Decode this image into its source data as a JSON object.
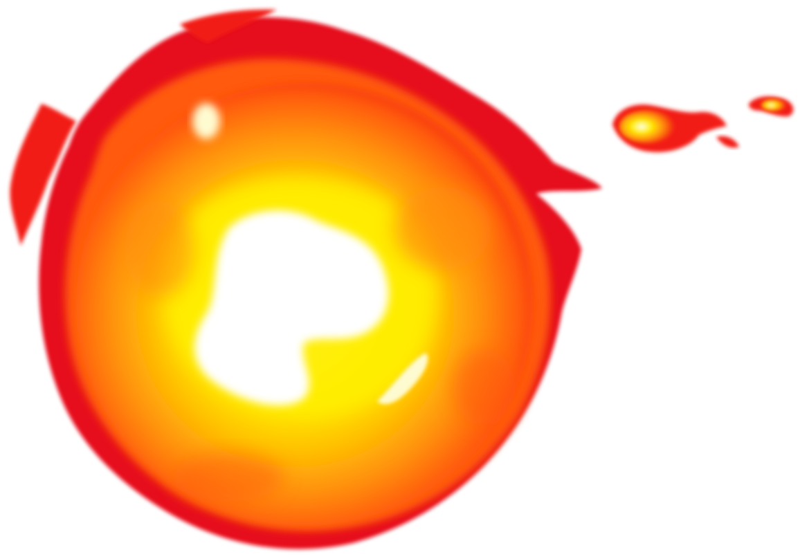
{
  "image": {
    "subject": "fireball",
    "background_color": "#ffffff"
  },
  "colors": {
    "core_white": "#ffffff",
    "core_light": "#fffbd0",
    "yellow": "#ffee00",
    "yellow_orange": "#ffc400",
    "orange": "#ff8c10",
    "deep_orange": "#ff5a0a",
    "red": "#f21c12",
    "crimson": "#e60e1c"
  },
  "elements": {
    "fireball": "fireball-icon",
    "trail_spark_large": "ember-icon",
    "trail_spark_small": "ember-icon"
  }
}
